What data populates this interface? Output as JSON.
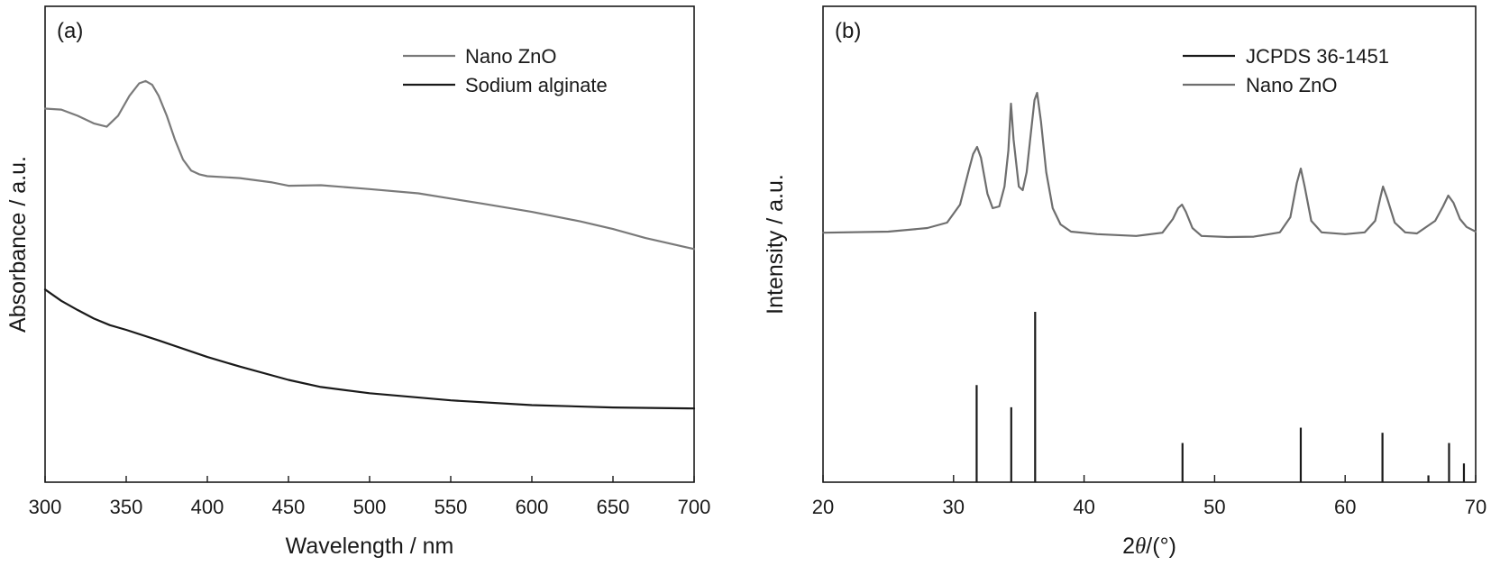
{
  "chart_data": [
    {
      "type": "line",
      "panel_label": "(a)",
      "xlabel": "Wavelength / nm",
      "ylabel": "Absorbance / a.u.",
      "xlim": [
        300,
        700
      ],
      "xticks": [
        300,
        350,
        400,
        450,
        500,
        550,
        600,
        650,
        700
      ],
      "grid": false,
      "legend_position": "top-right",
      "series": [
        {
          "name": "Nano ZnO",
          "color": "#7a7a7a",
          "x": [
            300,
            310,
            320,
            330,
            338,
            345,
            352,
            358,
            362,
            366,
            370,
            375,
            380,
            385,
            390,
            395,
            400,
            420,
            440,
            450,
            470,
            500,
            530,
            550,
            570,
            600,
            630,
            650,
            670,
            700
          ],
          "y": [
            0.785,
            0.783,
            0.77,
            0.754,
            0.747,
            0.77,
            0.812,
            0.838,
            0.843,
            0.835,
            0.812,
            0.77,
            0.72,
            0.678,
            0.655,
            0.647,
            0.643,
            0.639,
            0.63,
            0.623,
            0.624,
            0.616,
            0.607,
            0.596,
            0.585,
            0.568,
            0.548,
            0.532,
            0.513,
            0.49
          ]
        },
        {
          "name": "Sodium alginate",
          "color": "#1a1a1a",
          "x": [
            300,
            310,
            320,
            330,
            340,
            350,
            370,
            400,
            420,
            450,
            470,
            500,
            550,
            600,
            650,
            700
          ],
          "y": [
            0.405,
            0.381,
            0.362,
            0.344,
            0.33,
            0.32,
            0.298,
            0.263,
            0.243,
            0.215,
            0.2,
            0.187,
            0.172,
            0.162,
            0.157,
            0.155
          ]
        }
      ]
    },
    {
      "type": "line",
      "panel_label": "(b)",
      "xlabel_prefix": "2",
      "xlabel_symbol": "θ",
      "xlabel_suffix": "/(°)",
      "ylabel": "Intensity / a.u.",
      "xlim": [
        20,
        70
      ],
      "xticks": [
        20,
        30,
        40,
        50,
        60,
        70
      ],
      "grid": false,
      "legend_position": "top-right",
      "series": [
        {
          "name": "JCPDS 36-1451",
          "color": "#1a1a1a",
          "style": "sticks",
          "x": [
            31.77,
            34.42,
            36.25,
            47.54,
            56.6,
            62.86,
            66.38,
            67.96,
            69.1
          ],
          "y": [
            57,
            44,
            100,
            23,
            32,
            29,
            4,
            23,
            11
          ]
        },
        {
          "name": "Nano ZnO",
          "color": "#6e6e6e",
          "x": [
            20,
            25,
            28,
            29.5,
            30.5,
            31.2,
            31.5,
            31.8,
            32.1,
            32.6,
            33.0,
            33.5,
            33.9,
            34.2,
            34.4,
            34.6,
            35.0,
            35.3,
            35.6,
            35.9,
            36.2,
            36.4,
            36.7,
            37.1,
            37.6,
            38.2,
            39,
            41,
            44,
            46,
            46.8,
            47.2,
            47.5,
            47.8,
            48.3,
            49,
            51,
            53,
            55,
            55.8,
            56.3,
            56.6,
            56.9,
            57.4,
            58.2,
            60,
            61.5,
            62.3,
            62.7,
            62.9,
            63.2,
            63.8,
            64.6,
            65.5,
            66.3,
            66.9,
            67.5,
            67.9,
            68.3,
            68.8,
            69.3,
            70
          ],
          "y": [
            69.2,
            69.5,
            70.5,
            72.0,
            77.0,
            87.0,
            91.0,
            93.0,
            90.0,
            80.0,
            76.0,
            76.5,
            82.0,
            92.0,
            105.0,
            95.0,
            82.0,
            81.0,
            86.0,
            96.0,
            106.0,
            108.0,
            100.0,
            86.0,
            76.0,
            71.5,
            69.5,
            68.8,
            68.3,
            69.2,
            73.0,
            76.0,
            77.0,
            75.0,
            70.5,
            68.3,
            68.0,
            68.1,
            69.3,
            73.5,
            83.0,
            87.0,
            82.0,
            72.5,
            69.3,
            68.8,
            69.3,
            72.5,
            79.0,
            82.0,
            79.0,
            72.0,
            69.3,
            69.0,
            71.0,
            72.5,
            76.5,
            79.5,
            77.5,
            73.0,
            70.8,
            69.5
          ]
        }
      ]
    }
  ]
}
